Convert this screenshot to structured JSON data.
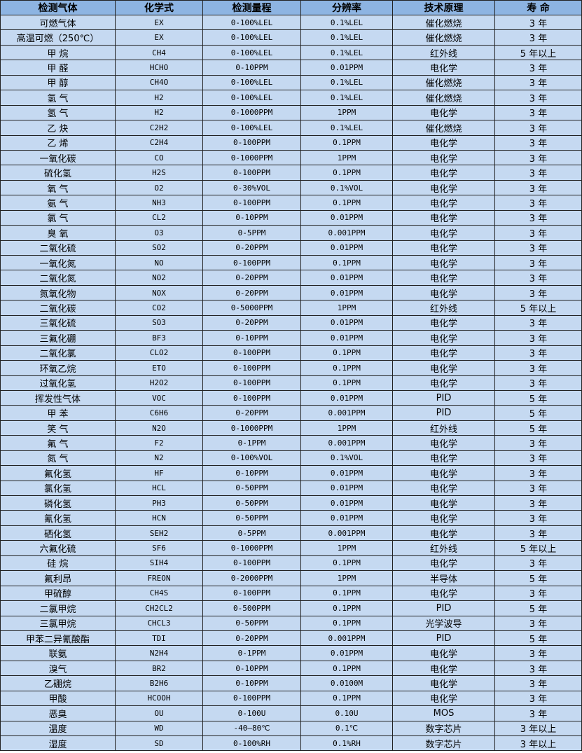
{
  "table": {
    "headers": [
      "检测气体",
      "化学式",
      "检测量程",
      "分辨率",
      "技术原理",
      "寿 命"
    ],
    "rows": [
      [
        "可燃气体",
        "EX",
        "0-100%LEL",
        "0.1%LEL",
        "催化燃烧",
        "3 年"
      ],
      [
        "高温可燃（250℃）",
        "EX",
        "0-100%LEL",
        "0.1%LEL",
        "催化燃烧",
        "3 年"
      ],
      [
        "甲 烷",
        "CH4",
        "0-100%LEL",
        "0.1%LEL",
        "红外线",
        "5 年以上"
      ],
      [
        "甲 醛",
        "HCHO",
        "0-10PPM",
        "0.01PPM",
        "电化学",
        "3 年"
      ],
      [
        "甲 醇",
        "CH4O",
        "0-100%LEL",
        "0.1%LEL",
        "催化燃烧",
        "3 年"
      ],
      [
        "氢 气",
        "H2",
        "0-100%LEL",
        "0.1%LEL",
        "催化燃烧",
        "3 年"
      ],
      [
        "氢 气",
        "H2",
        "0-1000PPM",
        "1PPM",
        "电化学",
        "3 年"
      ],
      [
        "乙 炔",
        "C2H2",
        "0-100%LEL",
        "0.1%LEL",
        "催化燃烧",
        "3 年"
      ],
      [
        "乙 烯",
        "C2H4",
        "0-100PPM",
        "0.1PPM",
        "电化学",
        "3 年"
      ],
      [
        "一氧化碳",
        "CO",
        "0-1000PPM",
        "1PPM",
        "电化学",
        "3 年"
      ],
      [
        "硫化氢",
        "H2S",
        "0-100PPM",
        "0.1PPM",
        "电化学",
        "3 年"
      ],
      [
        "氧 气",
        "O2",
        "0-30%VOL",
        "0.1%VOL",
        "电化学",
        "3 年"
      ],
      [
        "氨 气",
        "NH3",
        "0-100PPM",
        "0.1PPM",
        "电化学",
        "3 年"
      ],
      [
        "氯 气",
        "CL2",
        "0-10PPM",
        "0.01PPM",
        "电化学",
        "3 年"
      ],
      [
        "臭 氧",
        "O3",
        "0-5PPM",
        "0.001PPM",
        "电化学",
        "3 年"
      ],
      [
        "二氧化硫",
        "SO2",
        "0-20PPM",
        "0.01PPM",
        "电化学",
        "3 年"
      ],
      [
        "一氧化氮",
        "NO",
        "0-100PPM",
        "0.1PPM",
        "电化学",
        "3 年"
      ],
      [
        "二氧化氮",
        "NO2",
        "0-20PPM",
        "0.01PPM",
        "电化学",
        "3 年"
      ],
      [
        "氮氧化物",
        "NOX",
        "0-20PPM",
        "0.01PPM",
        "电化学",
        "3 年"
      ],
      [
        "二氧化碳",
        "CO2",
        "0-5000PPM",
        "1PPM",
        "红外线",
        "5 年以上"
      ],
      [
        "三氧化硫",
        "SO3",
        "0-20PPM",
        "0.01PPM",
        "电化学",
        "3 年"
      ],
      [
        "三氟化硼",
        "BF3",
        "0-10PPM",
        "0.01PPM",
        "电化学",
        "3 年"
      ],
      [
        "二氧化氯",
        "CLO2",
        "0-100PPM",
        "0.1PPM",
        "电化学",
        "3 年"
      ],
      [
        "环氧乙烷",
        "ETO",
        "0-100PPM",
        "0.1PPM",
        "电化学",
        "3 年"
      ],
      [
        "过氧化氢",
        "H2O2",
        "0-100PPM",
        "0.1PPM",
        "电化学",
        "3 年"
      ],
      [
        "挥发性气体",
        "VOC",
        "0-100PPM",
        "0.01PPM",
        "PID",
        "5 年"
      ],
      [
        "甲 苯",
        "C6H6",
        "0-20PPM",
        "0.001PPM",
        "PID",
        "5 年"
      ],
      [
        "笑 气",
        "N2O",
        "0-1000PPM",
        "1PPM",
        "红外线",
        "5 年"
      ],
      [
        "氟 气",
        "F2",
        "0-1PPM",
        "0.001PPM",
        "电化学",
        "3 年"
      ],
      [
        "氮 气",
        "N2",
        "0-100%VOL",
        "0.1%VOL",
        "电化学",
        "3 年"
      ],
      [
        "氟化氢",
        "HF",
        "0-10PPM",
        "0.01PPM",
        "电化学",
        "3 年"
      ],
      [
        "氯化氢",
        "HCL",
        "0-50PPM",
        "0.01PPM",
        "电化学",
        "3 年"
      ],
      [
        "磷化氢",
        "PH3",
        "0-50PPM",
        "0.01PPM",
        "电化学",
        "3 年"
      ],
      [
        "氰化氢",
        "HCN",
        "0-50PPM",
        "0.01PPM",
        "电化学",
        "3 年"
      ],
      [
        "硒化氢",
        "SEH2",
        "0-5PPM",
        "0.001PPM",
        "电化学",
        "3 年"
      ],
      [
        "六氟化硫",
        "SF6",
        "0-1000PPM",
        "1PPM",
        "红外线",
        "5 年以上"
      ],
      [
        "硅 烷",
        "SIH4",
        "0-100PPM",
        "0.1PPM",
        "电化学",
        "3 年"
      ],
      [
        "氟利昂",
        "FREON",
        "0-2000PPM",
        "1PPM",
        "半导体",
        "5 年"
      ],
      [
        "甲硫醇",
        "CH4S",
        "0-100PPM",
        "0.1PPM",
        "电化学",
        "3 年"
      ],
      [
        "二氯甲烷",
        "CH2CL2",
        "0-500PPM",
        "0.1PPM",
        "PID",
        "5 年"
      ],
      [
        "三氯甲烷",
        "CHCL3",
        "0-50PPM",
        "0.1PPM",
        "光学波导",
        "3 年"
      ],
      [
        "甲苯二异氰酸酯",
        "TDI",
        "0-20PPM",
        "0.001PPM",
        "PID",
        "5 年"
      ],
      [
        "联氨",
        "N2H4",
        "0-1PPM",
        "0.01PPM",
        "电化学",
        "3 年"
      ],
      [
        "溴气",
        "BR2",
        "0-10PPM",
        "0.1PPM",
        "电化学",
        "3 年"
      ],
      [
        "乙硼烷",
        "B2H6",
        "0-10PPM",
        "0.0100M",
        "电化学",
        "3 年"
      ],
      [
        "甲酸",
        "HCOOH",
        "0-100PPM",
        "0.1PPM",
        "电化学",
        "3 年"
      ],
      [
        "恶臭",
        "OU",
        "0-100U",
        "0.10U",
        "MOS",
        "3 年"
      ],
      [
        "温度",
        "WD",
        "-40—80℃",
        "0.1℃",
        "数字芯片",
        "3 年以上"
      ],
      [
        "湿度",
        "SD",
        "0-100%RH",
        "0.1%RH",
        "数字芯片",
        "3 年以上"
      ]
    ]
  }
}
